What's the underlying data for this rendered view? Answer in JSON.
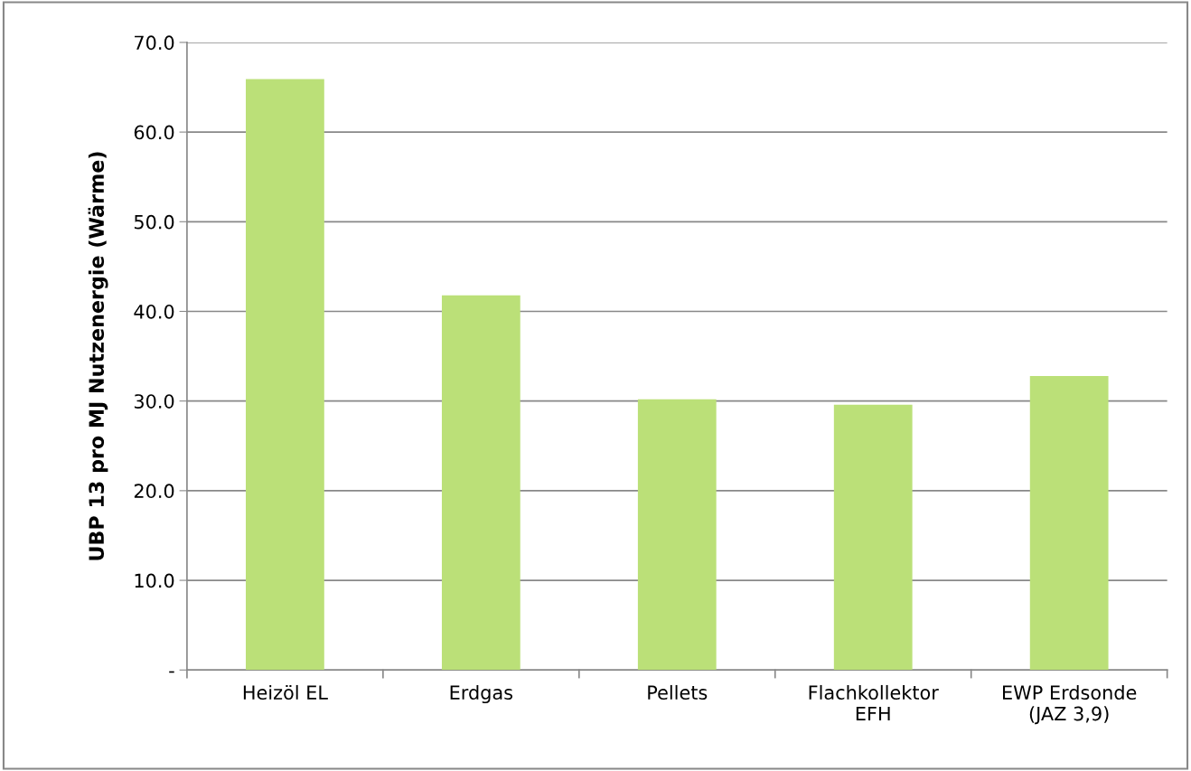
{
  "chart_data": {
    "type": "bar",
    "ylabel": "UBP 13 pro MJ Nutzenergie (Wärme)",
    "categories": [
      "Heizöl EL",
      "Erdgas",
      "Pellets",
      "Flachkollektor\nEFH",
      "EWP Erdsonde\n(JAZ 3,9)"
    ],
    "values": [
      65.9,
      41.8,
      30.2,
      29.6,
      32.8
    ],
    "color": "#bbe078",
    "ylim": [
      0,
      70
    ],
    "yticks": [
      {
        "value": 0,
        "label": "-"
      },
      {
        "value": 10,
        "label": "10.0"
      },
      {
        "value": 20,
        "label": "20.0"
      },
      {
        "value": 30,
        "label": "30.0"
      },
      {
        "value": 40,
        "label": "40.0"
      },
      {
        "value": 50,
        "label": "50.0"
      },
      {
        "value": 60,
        "label": "60.0"
      },
      {
        "value": 70,
        "label": "70.0"
      }
    ],
    "grid": "y"
  }
}
